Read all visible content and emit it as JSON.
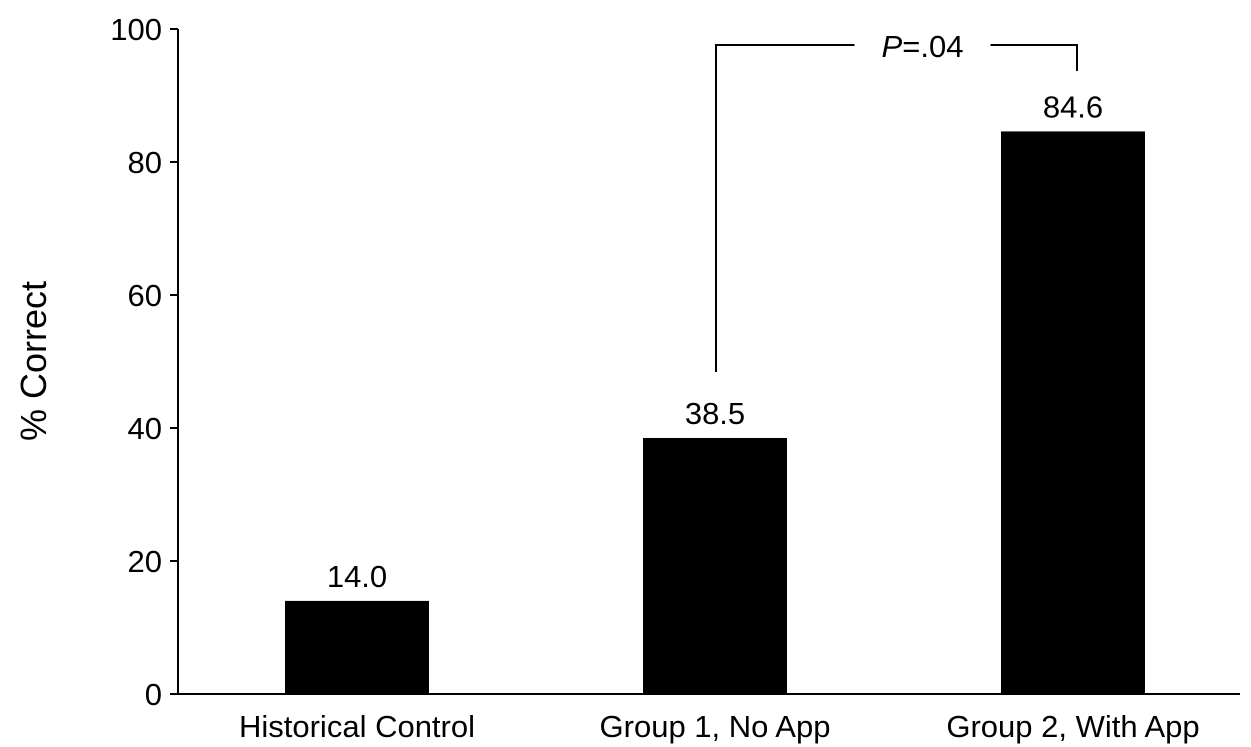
{
  "chart_data": {
    "type": "bar",
    "categories": [
      "Historical Control",
      "Group 1, No App",
      "Group 2, With App"
    ],
    "values": [
      14.0,
      38.5,
      84.6
    ],
    "value_labels": [
      "14.0",
      "38.5",
      "84.6"
    ],
    "title": "",
    "xlabel": "",
    "ylabel": "% Correct",
    "ylim": [
      0,
      100
    ],
    "yticks": [
      0,
      20,
      40,
      60,
      80,
      100
    ],
    "grid": false,
    "bar_color": "#000000",
    "significance": {
      "from": 1,
      "to": 2,
      "p_prefix": "P",
      "p_value": "=.04"
    }
  }
}
